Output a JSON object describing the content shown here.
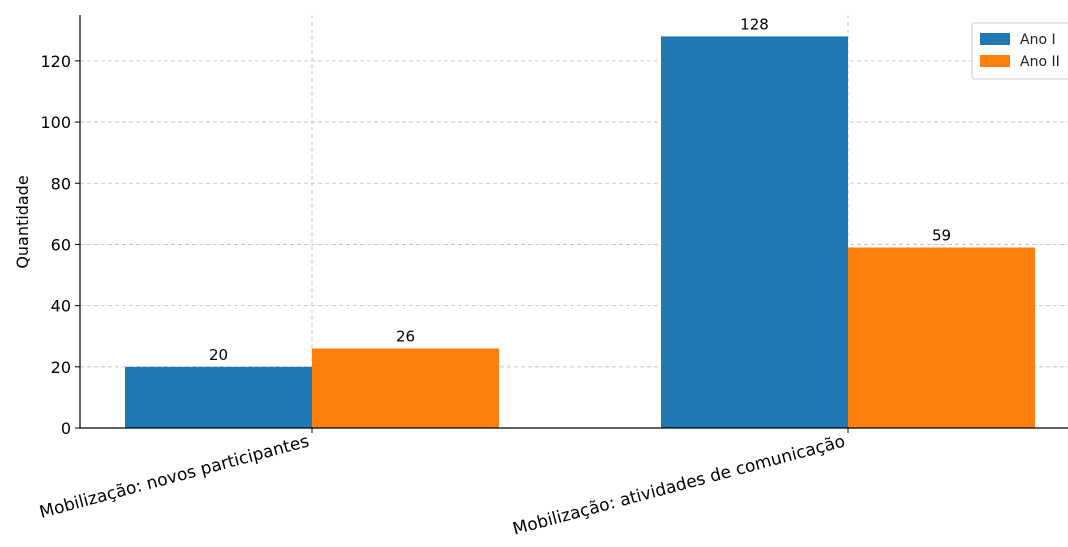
{
  "chart_data": {
    "type": "bar",
    "title": "",
    "xlabel": "",
    "ylabel": "Quantidade",
    "categories": [
      "Mobilização: novos participantes",
      "Mobilização: atividades de comunicação"
    ],
    "series": [
      {
        "name": "Ano I",
        "color": "#1f77b4",
        "values": [
          20,
          128
        ]
      },
      {
        "name": "Ano II",
        "color": "#ff7f0e",
        "values": [
          26,
          59
        ]
      }
    ],
    "ylim": [
      0,
      135
    ],
    "yticks": [
      0,
      20,
      40,
      60,
      80,
      100,
      120
    ],
    "grid": true,
    "legend_position": "top-right"
  }
}
